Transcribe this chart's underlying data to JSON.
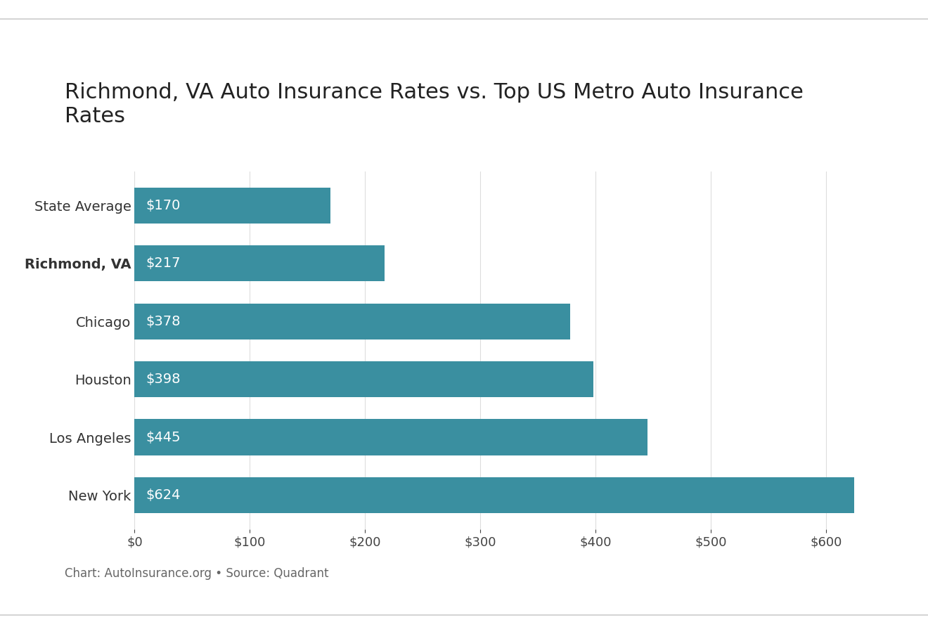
{
  "title": "Richmond, VA Auto Insurance Rates vs. Top US Metro Auto Insurance\nRates",
  "categories": [
    "State Average",
    "Richmond, VA",
    "Chicago",
    "Houston",
    "Los Angeles",
    "New York"
  ],
  "values": [
    170,
    217,
    378,
    398,
    445,
    624
  ],
  "bar_color": "#3a8fa0",
  "label_color": "#ffffff",
  "label_fontsize": 14,
  "title_fontsize": 22,
  "category_fontsize": 14,
  "tick_fontsize": 13,
  "xlim": [
    0,
    660
  ],
  "xticks": [
    0,
    100,
    200,
    300,
    400,
    500,
    600
  ],
  "background_color": "#ffffff",
  "bold_category_index": 1,
  "source_text": "Chart: AutoInsurance.org • Source: Quadrant",
  "source_fontsize": 12,
  "source_color": "#666666",
  "top_border_color": "#cccccc",
  "bottom_border_color": "#cccccc"
}
